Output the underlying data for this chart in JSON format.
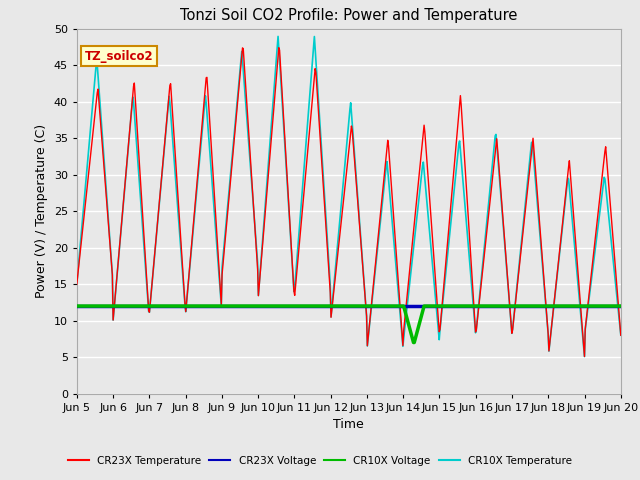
{
  "title": "Tonzi Soil CO2 Profile: Power and Temperature",
  "xlabel": "Time",
  "ylabel": "Power (V) / Temperature (C)",
  "ylim": [
    0,
    50
  ],
  "yticks": [
    0,
    5,
    10,
    15,
    20,
    25,
    30,
    35,
    40,
    45,
    50
  ],
  "xtick_labels": [
    "Jun 5",
    "Jun 6",
    "Jun 7",
    "Jun 8",
    "Jun 9",
    "Jun 10",
    "Jun 11",
    "Jun 12",
    "Jun 13",
    "Jun 14",
    "Jun 15",
    "Jun 16",
    "Jun 17",
    "Jun 18",
    "Jun 19",
    "Jun 20"
  ],
  "background_color": "#e8e8e8",
  "plot_bg_color": "#e8e8e8",
  "cr23x_temp_color": "#ff0000",
  "cr23x_volt_color": "#0000bb",
  "cr10x_volt_color": "#00bb00",
  "cr10x_temp_color": "#00cccc",
  "cr23x_volt_value": 12.0,
  "cr10x_volt_value": 12.0,
  "annotation_text": "TZ_soilco2",
  "annotation_bg": "#ffffcc",
  "annotation_border": "#cc8800",
  "legend_labels": [
    "CR23X Temperature",
    "CR23X Voltage",
    "CR10X Voltage",
    "CR10X Temperature"
  ],
  "legend_colors": [
    "#ff0000",
    "#0000bb",
    "#00bb00",
    "#00cccc"
  ]
}
